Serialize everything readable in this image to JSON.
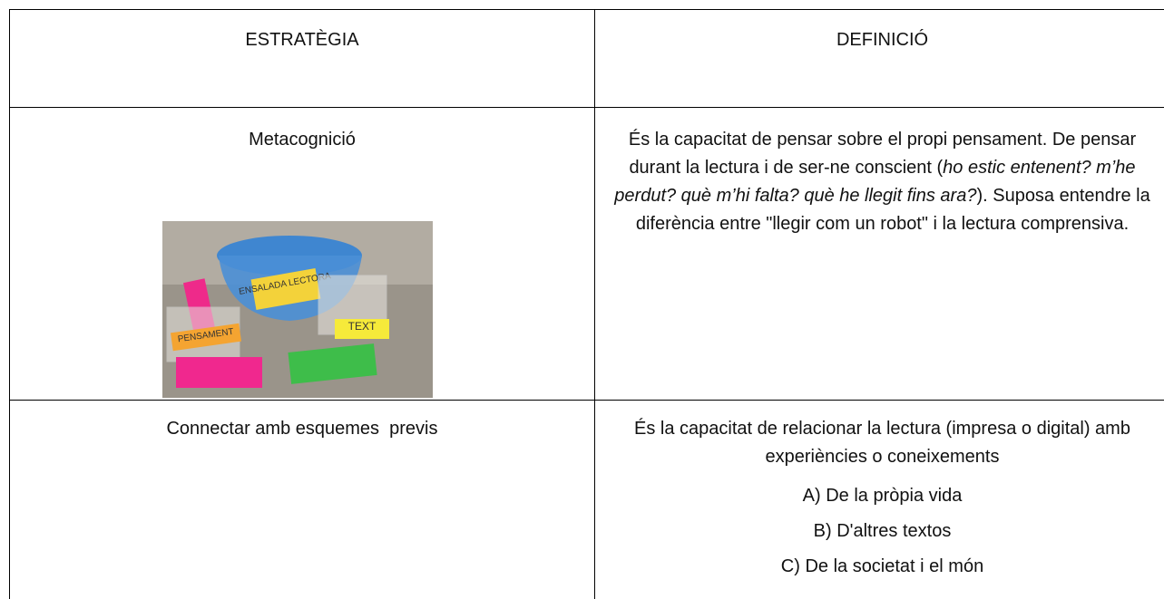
{
  "table": {
    "header": [
      "ESTRATÈGIA",
      "DEFINICIÓ"
    ],
    "rows": [
      {
        "strategy": "Metacognició",
        "image": {
          "labels": [
            "ENSALADA LECTORA",
            "PENSAMENT",
            "TEXT"
          ]
        },
        "definition": [
          {
            "text": "És la capacitat de pensar sobre el propi pensament. De pensar durant la lectura i de ser-ne conscient (",
            "style": "normal"
          },
          {
            "text": "ho estic entenent? m’he perdut? què m’hi falta? què he llegit fins ara?",
            "style": "italic"
          },
          {
            "text": "). Suposa entendre la diferència entre \"llegir com un robot\" i la lectura comprensiva.",
            "style": "normal"
          }
        ]
      },
      {
        "strategy": "Connectar amb esquemes  previs",
        "definition": [
          {
            "text": "És la capacitat de relacionar la lectura (impresa o digital) amb experiències o coneixements",
            "style": "normal"
          }
        ],
        "items": [
          "A) De la pròpia vida",
          "B) D'altres textos",
          "C) De la societat i el món"
        ]
      }
    ]
  }
}
